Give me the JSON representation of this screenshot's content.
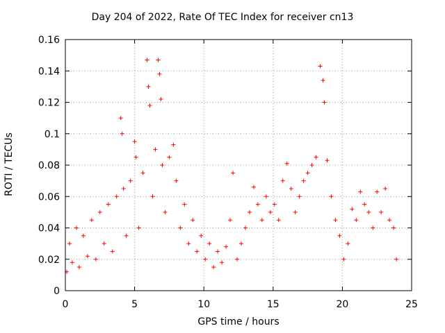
{
  "chart_data": {
    "type": "scatter",
    "title": "Day 204 of 2022, Rate Of TEC Index for receiver cn13",
    "xlabel": "GPS time / hours",
    "ylabel": "ROTI / TECUs",
    "xlim": [
      0,
      25
    ],
    "ylim": [
      0,
      0.16
    ],
    "xticks": [
      "0",
      "5",
      "10",
      "15",
      "20",
      "25"
    ],
    "yticks": [
      "0",
      "0.02",
      "0.04",
      "0.06",
      "0.08",
      "0.1",
      "0.12",
      "0.14",
      "0.16"
    ],
    "grid": true,
    "marker": "+",
    "color": "#ff0000",
    "series": [
      {
        "x": [
          0.1,
          0.3,
          0.5,
          0.8,
          1.0,
          1.3,
          1.6,
          1.9,
          2.2,
          2.5,
          2.8,
          3.1,
          3.4,
          3.7,
          4.0,
          4.1,
          4.2,
          4.4,
          4.7,
          5.0,
          5.1,
          5.3,
          5.6,
          5.9,
          6.0,
          6.1,
          6.3,
          6.5,
          6.7,
          6.8,
          6.9,
          7.0,
          7.2,
          7.5,
          7.8,
          8.0,
          8.3,
          8.6,
          8.9,
          9.2,
          9.5,
          9.8,
          10.1,
          10.4,
          10.7,
          11.0,
          11.3,
          11.6,
          11.9,
          12.1,
          12.4,
          12.7,
          13.0,
          13.3,
          13.6,
          13.9,
          14.2,
          14.5,
          14.8,
          15.1,
          15.4,
          15.7,
          16.0,
          16.3,
          16.6,
          16.9,
          17.2,
          17.5,
          17.8,
          18.1,
          18.4,
          18.6,
          18.7,
          18.9,
          19.2,
          19.5,
          19.8,
          20.1,
          20.4,
          20.7,
          21.0,
          21.3,
          21.6,
          21.9,
          22.2,
          22.5,
          22.8,
          23.1,
          23.4,
          23.7,
          23.9
        ],
        "y": [
          0.012,
          0.03,
          0.018,
          0.04,
          0.015,
          0.035,
          0.022,
          0.045,
          0.02,
          0.05,
          0.03,
          0.055,
          0.025,
          0.06,
          0.11,
          0.1,
          0.065,
          0.035,
          0.07,
          0.095,
          0.085,
          0.04,
          0.075,
          0.147,
          0.13,
          0.118,
          0.06,
          0.09,
          0.147,
          0.138,
          0.122,
          0.08,
          0.05,
          0.085,
          0.093,
          0.07,
          0.04,
          0.055,
          0.03,
          0.045,
          0.025,
          0.035,
          0.02,
          0.03,
          0.015,
          0.025,
          0.018,
          0.028,
          0.045,
          0.075,
          0.02,
          0.03,
          0.04,
          0.05,
          0.066,
          0.055,
          0.045,
          0.06,
          0.05,
          0.055,
          0.045,
          0.07,
          0.081,
          0.065,
          0.05,
          0.06,
          0.07,
          0.075,
          0.08,
          0.085,
          0.143,
          0.134,
          0.12,
          0.083,
          0.06,
          0.045,
          0.035,
          0.02,
          0.03,
          0.052,
          0.045,
          0.063,
          0.055,
          0.05,
          0.04,
          0.063,
          0.05,
          0.065,
          0.045,
          0.04,
          0.02
        ]
      }
    ]
  }
}
